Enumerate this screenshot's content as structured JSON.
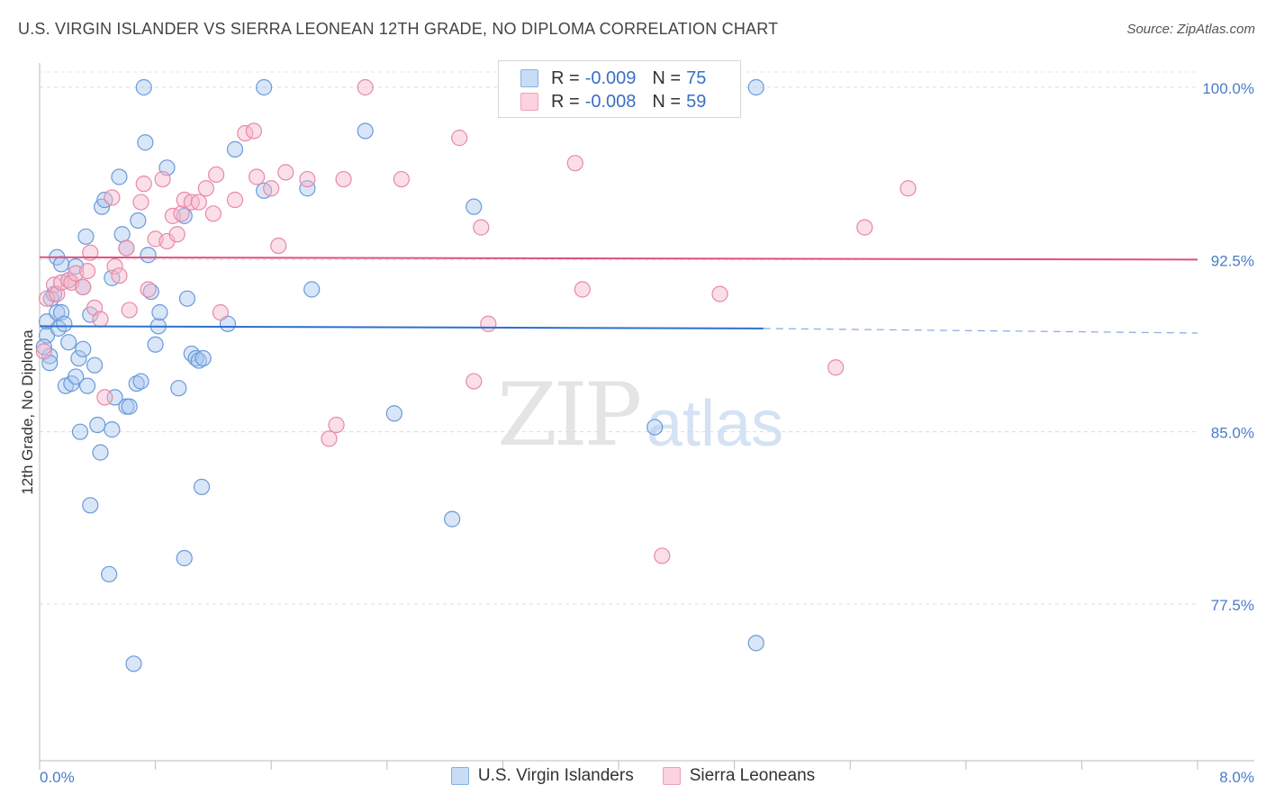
{
  "header": {
    "title": "U.S. VIRGIN ISLANDER VS SIERRA LEONEAN 12TH GRADE, NO DIPLOMA CORRELATION CHART",
    "source": "Source: ZipAtlas.com"
  },
  "watermark": {
    "zip": "ZIP",
    "atlas": "atlas"
  },
  "legend": {
    "rows": [
      {
        "r_label": "R =",
        "r_value": "-0.009",
        "n_label": "N =",
        "n_value": "75",
        "color": "#a8c8f0"
      },
      {
        "r_label": "R =",
        "r_value": "-0.008",
        "n_label": "N =",
        "n_value": "59",
        "color": "#f7b8cc"
      }
    ]
  },
  "bottom_legend": {
    "items": [
      {
        "label": "U.S. Virgin Islanders",
        "color": "#a8c8f0"
      },
      {
        "label": "Sierra Leoneans",
        "color": "#f7b8cc"
      }
    ]
  },
  "chart_data": {
    "type": "scatter",
    "title": "U.S. VIRGIN ISLANDER VS SIERRA LEONEAN 12TH GRADE, NO DIPLOMA CORRELATION CHART",
    "ylabel": "12th Grade, No Diploma",
    "xlabel": "",
    "xlim": [
      0,
      8.0
    ],
    "ylim": [
      71.0,
      101.0
    ],
    "x_tick_labels": [
      "0.0%",
      "8.0%"
    ],
    "y_ticks": [
      100.0,
      92.5,
      85.0,
      77.5
    ],
    "y_tick_labels": [
      "100.0%",
      "92.5%",
      "85.0%",
      "77.5%"
    ],
    "grid": true,
    "legend_position": "top-center",
    "series": [
      {
        "name": "U.S. Virgin Islanders",
        "color": "#a8c8f0",
        "stroke": "#6a9ad8",
        "trend": {
          "x": [
            0,
            5.0
          ],
          "y": [
            89.6,
            89.5
          ],
          "dashed_to": [
            8.0,
            89.3
          ],
          "color": "#2e6fd0"
        },
        "points": [
          [
            0.05,
            89.8
          ],
          [
            0.05,
            89.2
          ],
          [
            0.07,
            88.3
          ],
          [
            0.07,
            88.0
          ],
          [
            0.08,
            90.8
          ],
          [
            0.1,
            91.0
          ],
          [
            0.12,
            90.2
          ],
          [
            0.12,
            92.6
          ],
          [
            0.13,
            89.5
          ],
          [
            0.15,
            90.2
          ],
          [
            0.15,
            92.3
          ],
          [
            0.17,
            89.7
          ],
          [
            0.18,
            87.0
          ],
          [
            0.2,
            91.6
          ],
          [
            0.2,
            88.9
          ],
          [
            0.22,
            87.1
          ],
          [
            0.25,
            87.4
          ],
          [
            0.25,
            92.2
          ],
          [
            0.27,
            88.2
          ],
          [
            0.28,
            85.0
          ],
          [
            0.3,
            91.3
          ],
          [
            0.3,
            88.6
          ],
          [
            0.32,
            93.5
          ],
          [
            0.33,
            87.0
          ],
          [
            0.35,
            90.1
          ],
          [
            0.35,
            81.8
          ],
          [
            0.38,
            87.9
          ],
          [
            0.4,
            85.3
          ],
          [
            0.42,
            84.1
          ],
          [
            0.43,
            94.8
          ],
          [
            0.45,
            95.1
          ],
          [
            0.48,
            78.8
          ],
          [
            0.5,
            85.1
          ],
          [
            0.5,
            91.7
          ],
          [
            0.52,
            86.5
          ],
          [
            0.55,
            96.1
          ],
          [
            0.57,
            93.6
          ],
          [
            0.6,
            86.1
          ],
          [
            0.6,
            93.0
          ],
          [
            0.62,
            86.1
          ],
          [
            0.65,
            74.9
          ],
          [
            0.67,
            87.1
          ],
          [
            0.68,
            94.2
          ],
          [
            0.7,
            87.2
          ],
          [
            0.72,
            100.0
          ],
          [
            0.73,
            97.6
          ],
          [
            0.75,
            92.7
          ],
          [
            0.77,
            91.1
          ],
          [
            0.8,
            88.8
          ],
          [
            0.82,
            89.6
          ],
          [
            0.83,
            90.2
          ],
          [
            0.88,
            96.5
          ],
          [
            0.96,
            86.9
          ],
          [
            1.0,
            79.5
          ],
          [
            1.0,
            94.4
          ],
          [
            1.02,
            90.8
          ],
          [
            1.05,
            88.4
          ],
          [
            1.08,
            88.2
          ],
          [
            1.1,
            88.1
          ],
          [
            1.12,
            82.6
          ],
          [
            1.13,
            88.2
          ],
          [
            1.3,
            89.7
          ],
          [
            1.35,
            97.3
          ],
          [
            1.55,
            95.5
          ],
          [
            1.55,
            100.0
          ],
          [
            1.85,
            95.6
          ],
          [
            1.88,
            91.2
          ],
          [
            2.25,
            98.1
          ],
          [
            2.45,
            85.8
          ],
          [
            2.85,
            81.2
          ],
          [
            3.0,
            94.8
          ],
          [
            4.25,
            85.2
          ],
          [
            4.95,
            100.0
          ],
          [
            4.95,
            75.8
          ],
          [
            0.03,
            88.7
          ]
        ]
      },
      {
        "name": "Sierra Leoneans",
        "color": "#f7b8cc",
        "stroke": "#e888a8",
        "trend": {
          "x": [
            0,
            8.0
          ],
          "y": [
            92.6,
            92.5
          ],
          "color": "#e0507f"
        },
        "points": [
          [
            0.03,
            88.5
          ],
          [
            0.05,
            90.8
          ],
          [
            0.1,
            91.4
          ],
          [
            0.12,
            91.0
          ],
          [
            0.15,
            91.5
          ],
          [
            0.2,
            91.6
          ],
          [
            0.22,
            91.5
          ],
          [
            0.25,
            91.9
          ],
          [
            0.3,
            91.3
          ],
          [
            0.33,
            92.0
          ],
          [
            0.35,
            92.8
          ],
          [
            0.38,
            90.4
          ],
          [
            0.42,
            89.9
          ],
          [
            0.45,
            86.5
          ],
          [
            0.5,
            95.2
          ],
          [
            0.52,
            92.2
          ],
          [
            0.55,
            91.8
          ],
          [
            0.6,
            93.0
          ],
          [
            0.62,
            90.3
          ],
          [
            0.7,
            95.0
          ],
          [
            0.72,
            95.8
          ],
          [
            0.75,
            91.2
          ],
          [
            0.8,
            93.4
          ],
          [
            0.85,
            96.0
          ],
          [
            0.88,
            93.3
          ],
          [
            0.92,
            94.4
          ],
          [
            0.95,
            93.6
          ],
          [
            0.98,
            94.5
          ],
          [
            1.0,
            95.1
          ],
          [
            1.05,
            95.0
          ],
          [
            1.1,
            95.0
          ],
          [
            1.15,
            95.6
          ],
          [
            1.2,
            94.5
          ],
          [
            1.22,
            96.2
          ],
          [
            1.25,
            90.2
          ],
          [
            1.35,
            95.1
          ],
          [
            1.42,
            98.0
          ],
          [
            1.48,
            98.1
          ],
          [
            1.5,
            96.1
          ],
          [
            1.6,
            95.6
          ],
          [
            1.65,
            93.1
          ],
          [
            1.7,
            96.3
          ],
          [
            1.85,
            96.0
          ],
          [
            2.0,
            84.7
          ],
          [
            2.05,
            85.3
          ],
          [
            2.1,
            96.0
          ],
          [
            2.25,
            100.0
          ],
          [
            2.5,
            96.0
          ],
          [
            2.9,
            97.8
          ],
          [
            3.0,
            87.2
          ],
          [
            3.05,
            93.9
          ],
          [
            3.1,
            89.7
          ],
          [
            3.7,
            96.7
          ],
          [
            3.75,
            91.2
          ],
          [
            4.3,
            79.6
          ],
          [
            4.7,
            91.0
          ],
          [
            5.5,
            87.8
          ],
          [
            5.7,
            93.9
          ],
          [
            6.0,
            95.6
          ]
        ]
      }
    ]
  }
}
